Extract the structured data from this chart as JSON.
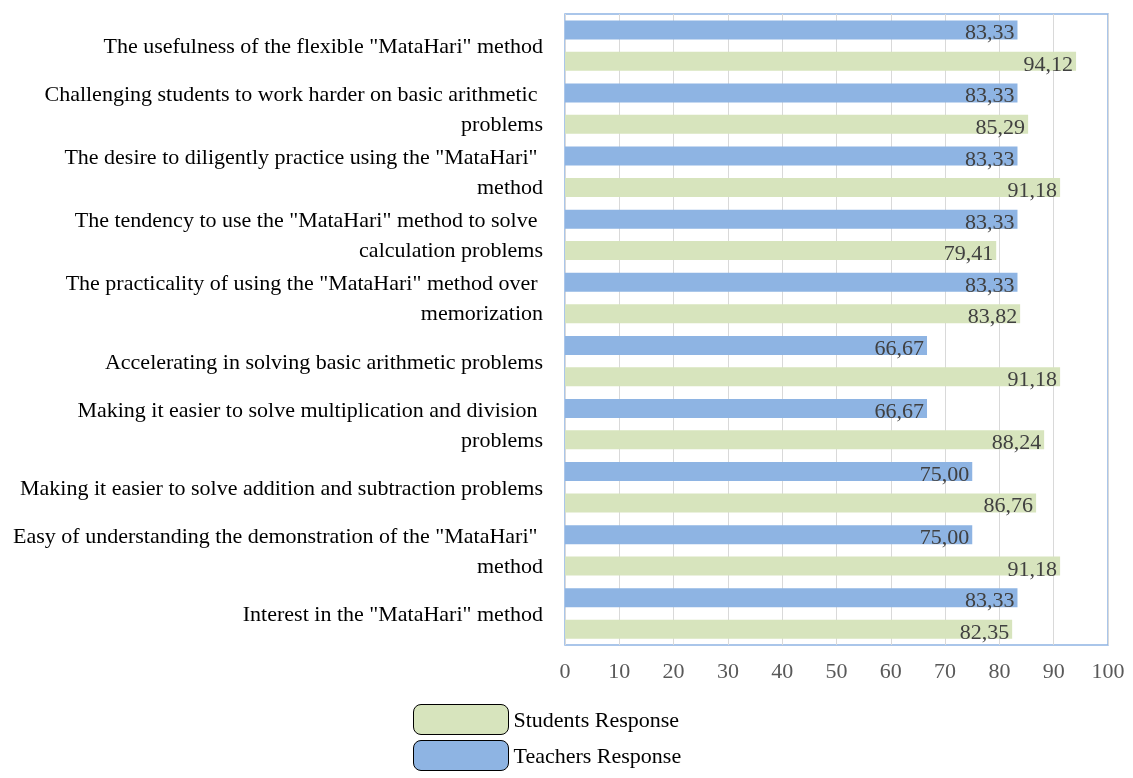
{
  "chart_data": {
    "type": "bar",
    "orientation": "horizontal",
    "categories": [
      "The usefulness of the flexible \"MataHari\" method",
      "Challenging students to work harder on basic arithmetic problems",
      "The desire to diligently practice using the \"MataHari\" method",
      "The tendency to use the \"MataHari\" method to solve calculation problems",
      "The practicality of using the \"MataHari\" method over memorization",
      "Accelerating in solving basic arithmetic problems",
      "Making it easier to solve multiplication and division problems",
      "Making it easier to solve addition and subtraction problems",
      "Easy of understanding the demonstration of the \"MataHari\" method",
      "Interest in the \"MataHari\" method"
    ],
    "series": [
      {
        "name": "Teachers Response",
        "color": "#8eb4e3",
        "values": [
          83.33,
          83.33,
          83.33,
          83.33,
          83.33,
          66.67,
          66.67,
          75.0,
          75.0,
          83.33
        ],
        "value_labels": [
          "83,33",
          "83,33",
          "83,33",
          "83,33",
          "83,33",
          "66,67",
          "66,67",
          "75,00",
          "75,00",
          "83,33"
        ]
      },
      {
        "name": "Students Response",
        "color": "#d7e4bd",
        "values": [
          94.12,
          85.29,
          91.18,
          79.41,
          83.82,
          91.18,
          88.24,
          86.76,
          91.18,
          82.35
        ],
        "value_labels": [
          "94,12",
          "85,29",
          "91,18",
          "79,41",
          "83,82",
          "91,18",
          "88,24",
          "86,76",
          "91,18",
          "82,35"
        ]
      }
    ],
    "xlim": [
      0,
      100
    ],
    "xticks": [
      0,
      10,
      20,
      30,
      40,
      50,
      60,
      70,
      80,
      90,
      100
    ],
    "grid": "x",
    "legend": "bottom"
  }
}
